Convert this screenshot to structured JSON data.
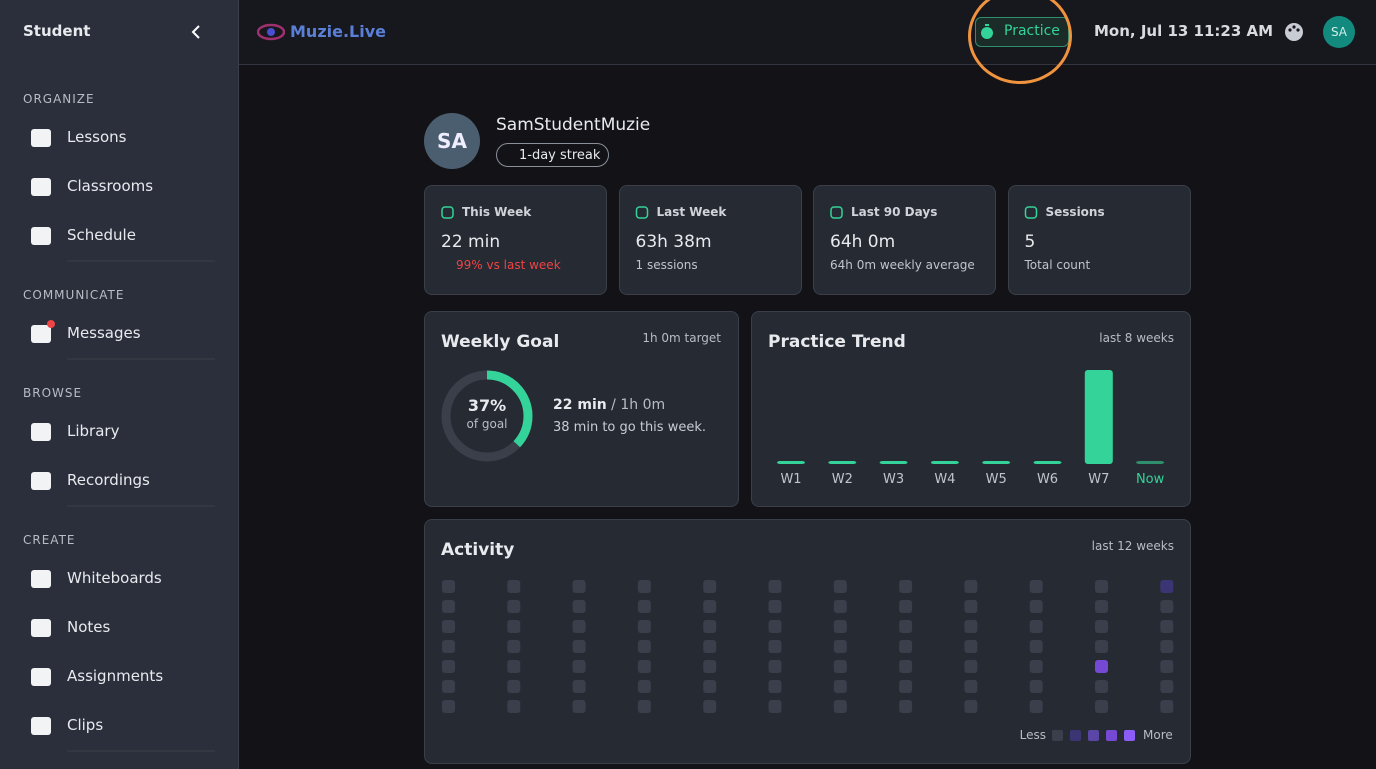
{
  "sidebar": {
    "title": "Student",
    "sections": [
      {
        "heading": "ORGANIZE",
        "items": [
          "Lessons",
          "Classrooms",
          "Schedule"
        ]
      },
      {
        "heading": "COMMUNICATE",
        "items": [
          "Messages"
        ]
      },
      {
        "heading": "BROWSE",
        "items": [
          "Library",
          "Recordings"
        ]
      },
      {
        "heading": "CREATE",
        "items": [
          "Whiteboards",
          "Notes",
          "Assignments",
          "Clips"
        ]
      }
    ]
  },
  "header": {
    "brand": "Muzie.Live",
    "practice_button": "Practice",
    "datetime": "Mon, Jul 13 11:23 AM",
    "avatar": "SA"
  },
  "profile": {
    "avatar": "SA",
    "name": "SamStudentMuzie",
    "streak": "1-day streak"
  },
  "stats": [
    {
      "label": "This Week",
      "value": "22 min",
      "sub": "99% vs last week"
    },
    {
      "label": "Last Week",
      "value": "63h 38m",
      "sub": "1 sessions"
    },
    {
      "label": "Last 90 Days",
      "value": "64h 0m",
      "sub": "64h 0m weekly average"
    },
    {
      "label": "Sessions",
      "value": "5",
      "sub": "Total count"
    }
  ],
  "weekly_goal": {
    "title": "Weekly Goal",
    "target": "1h 0m target",
    "percent": 37,
    "percent_label": "37%",
    "percent_caption": "of goal",
    "progress": "22 min",
    "goal": "/ 1h 0m",
    "remaining": "38 min to go this week."
  },
  "practice_trend": {
    "title": "Practice Trend",
    "range": "last 8 weeks",
    "weeks": [
      "W1",
      "W2",
      "W3",
      "W4",
      "W5",
      "W6",
      "W7",
      "Now"
    ],
    "minutes": [
      0,
      0,
      0,
      0,
      0,
      0,
      3818,
      22
    ]
  },
  "activity": {
    "title": "Activity",
    "range": "last 12 weeks",
    "legend_less": "Less",
    "legend_more": "More",
    "colors": [
      "#3a3f4b",
      "#3b3673",
      "#5b46a8",
      "#7549d4",
      "#8b5cf6"
    ],
    "levels": [
      [
        0,
        0,
        0,
        0,
        0,
        0,
        0
      ],
      [
        0,
        0,
        0,
        0,
        0,
        0,
        0
      ],
      [
        0,
        0,
        0,
        0,
        0,
        0,
        0
      ],
      [
        0,
        0,
        0,
        0,
        0,
        0,
        0
      ],
      [
        0,
        0,
        0,
        0,
        0,
        0,
        0
      ],
      [
        0,
        0,
        0,
        0,
        0,
        0,
        0
      ],
      [
        0,
        0,
        0,
        0,
        0,
        0,
        0
      ],
      [
        0,
        0,
        0,
        0,
        0,
        0,
        0
      ],
      [
        0,
        0,
        0,
        0,
        0,
        0,
        0
      ],
      [
        0,
        0,
        0,
        0,
        0,
        0,
        0
      ],
      [
        0,
        0,
        0,
        0,
        3,
        0,
        0
      ],
      [
        1,
        0,
        0,
        0,
        0,
        0,
        0
      ]
    ]
  }
}
